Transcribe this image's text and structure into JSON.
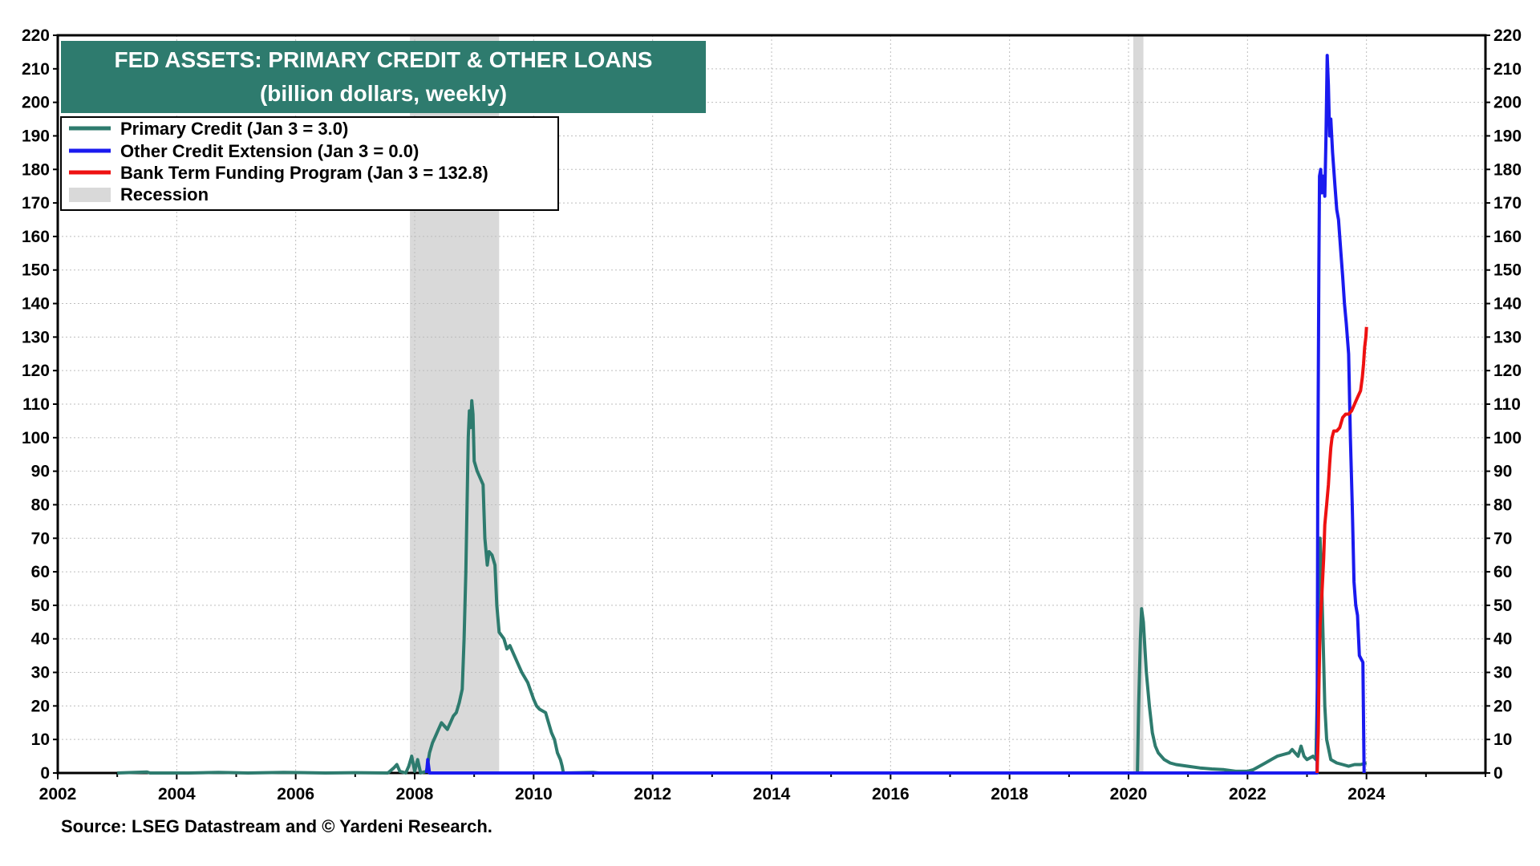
{
  "chart_data": {
    "type": "line",
    "title": "FED ASSETS: PRIMARY CREDIT & OTHER LOANS",
    "subtitle": "(billion dollars, weekly)",
    "source": "Source: LSEG Datastream and © Yardeni Research.",
    "xlim": [
      2002,
      2026
    ],
    "ylim": [
      0,
      220
    ],
    "x_ticks": [
      2002,
      2004,
      2006,
      2008,
      2010,
      2012,
      2014,
      2016,
      2018,
      2020,
      2022,
      2024
    ],
    "y_ticks": [
      0,
      10,
      20,
      30,
      40,
      50,
      60,
      70,
      80,
      90,
      100,
      110,
      120,
      130,
      140,
      150,
      160,
      170,
      180,
      190,
      200,
      210,
      220
    ],
    "grid": true,
    "legend_position": "top-left",
    "recessions": [
      {
        "start": 2007.92,
        "end": 2009.42
      },
      {
        "start": 2020.08,
        "end": 2020.25
      }
    ],
    "legend": {
      "primary": "Primary Credit (Jan 3 = 3.0)",
      "other": "Other Credit Extension (Jan 3 = 0.0)",
      "btfp": "Bank Term Funding Program (Jan 3 = 132.8)",
      "recession": "Recession"
    },
    "series": [
      {
        "key": "primary",
        "name": "Primary Credit (Jan 3 = 3.0)",
        "color": "#2e7b6e",
        "points": [
          [
            2003.0,
            0
          ],
          [
            2003.5,
            0.3
          ],
          [
            2003.55,
            0
          ],
          [
            2004.2,
            0
          ],
          [
            2004.7,
            0.2
          ],
          [
            2005.2,
            0
          ],
          [
            2005.8,
            0.2
          ],
          [
            2006.5,
            0
          ],
          [
            2007.0,
            0.1
          ],
          [
            2007.55,
            0
          ],
          [
            2007.65,
            1.5
          ],
          [
            2007.7,
            2.5
          ],
          [
            2007.75,
            0.5
          ],
          [
            2007.85,
            0
          ],
          [
            2007.9,
            2.0
          ],
          [
            2007.95,
            5.0
          ],
          [
            2008.0,
            0.5
          ],
          [
            2008.05,
            4.0
          ],
          [
            2008.1,
            0
          ],
          [
            2008.2,
            0.5
          ],
          [
            2008.25,
            6.0
          ],
          [
            2008.3,
            9.0
          ],
          [
            2008.35,
            11.0
          ],
          [
            2008.4,
            13.0
          ],
          [
            2008.45,
            15.0
          ],
          [
            2008.5,
            14.0
          ],
          [
            2008.55,
            13.0
          ],
          [
            2008.6,
            15.0
          ],
          [
            2008.65,
            17.0
          ],
          [
            2008.7,
            18.0
          ],
          [
            2008.75,
            21.0
          ],
          [
            2008.8,
            25.0
          ],
          [
            2008.83,
            40.0
          ],
          [
            2008.86,
            60.0
          ],
          [
            2008.88,
            80.0
          ],
          [
            2008.9,
            100.0
          ],
          [
            2008.92,
            108.0
          ],
          [
            2008.94,
            103.0
          ],
          [
            2008.96,
            111.0
          ],
          [
            2008.98,
            107.0
          ],
          [
            2009.0,
            93.0
          ],
          [
            2009.05,
            90.0
          ],
          [
            2009.1,
            88.0
          ],
          [
            2009.15,
            86.0
          ],
          [
            2009.18,
            70.0
          ],
          [
            2009.2,
            66.0
          ],
          [
            2009.22,
            62.0
          ],
          [
            2009.25,
            66.0
          ],
          [
            2009.3,
            65.0
          ],
          [
            2009.35,
            62.0
          ],
          [
            2009.38,
            50.0
          ],
          [
            2009.42,
            42.0
          ],
          [
            2009.5,
            40.0
          ],
          [
            2009.55,
            37.0
          ],
          [
            2009.6,
            38.0
          ],
          [
            2009.7,
            34.0
          ],
          [
            2009.75,
            32.0
          ],
          [
            2009.8,
            30.0
          ],
          [
            2009.9,
            27.0
          ],
          [
            2010.0,
            22.0
          ],
          [
            2010.05,
            20.0
          ],
          [
            2010.1,
            19.0
          ],
          [
            2010.2,
            18.0
          ],
          [
            2010.25,
            15.0
          ],
          [
            2010.3,
            12.0
          ],
          [
            2010.35,
            10.0
          ],
          [
            2010.4,
            6.0
          ],
          [
            2010.45,
            4.0
          ],
          [
            2010.48,
            2.0
          ],
          [
            2010.5,
            0
          ],
          [
            2011.0,
            0.2
          ],
          [
            2011.1,
            0
          ],
          [
            2012.0,
            0
          ],
          [
            2019.9,
            0
          ],
          [
            2020.15,
            0
          ],
          [
            2020.17,
            20.0
          ],
          [
            2020.2,
            40.0
          ],
          [
            2020.22,
            49.0
          ],
          [
            2020.25,
            45.0
          ],
          [
            2020.3,
            30.0
          ],
          [
            2020.35,
            20.0
          ],
          [
            2020.4,
            12.0
          ],
          [
            2020.45,
            8.0
          ],
          [
            2020.5,
            6.0
          ],
          [
            2020.6,
            4.0
          ],
          [
            2020.7,
            3.0
          ],
          [
            2020.8,
            2.5
          ],
          [
            2021.0,
            2.0
          ],
          [
            2021.2,
            1.5
          ],
          [
            2021.4,
            1.2
          ],
          [
            2021.6,
            1.0
          ],
          [
            2021.8,
            0.5
          ],
          [
            2022.0,
            0.5
          ],
          [
            2022.1,
            1.0
          ],
          [
            2022.2,
            2.0
          ],
          [
            2022.3,
            3.0
          ],
          [
            2022.4,
            4.0
          ],
          [
            2022.5,
            5.0
          ],
          [
            2022.6,
            5.5
          ],
          [
            2022.7,
            6.0
          ],
          [
            2022.75,
            7.0
          ],
          [
            2022.8,
            6.0
          ],
          [
            2022.85,
            5.0
          ],
          [
            2022.9,
            8.0
          ],
          [
            2022.95,
            5.0
          ],
          [
            2023.0,
            4.0
          ],
          [
            2023.1,
            5.0
          ],
          [
            2023.15,
            4.0
          ],
          [
            2023.18,
            30.0
          ],
          [
            2023.2,
            60.0
          ],
          [
            2023.22,
            70.0
          ],
          [
            2023.25,
            55.0
          ],
          [
            2023.3,
            20.0
          ],
          [
            2023.33,
            10.0
          ],
          [
            2023.4,
            4.0
          ],
          [
            2023.5,
            3.0
          ],
          [
            2023.6,
            2.5
          ],
          [
            2023.7,
            2.0
          ],
          [
            2023.8,
            2.5
          ],
          [
            2023.9,
            2.5
          ],
          [
            2024.0,
            3.0
          ]
        ]
      },
      {
        "key": "other",
        "name": "Other Credit Extension (Jan 3 = 0.0)",
        "color": "#1a1aef",
        "points": [
          [
            2008.2,
            0
          ],
          [
            2008.22,
            4.0
          ],
          [
            2008.25,
            0
          ],
          [
            2023.17,
            0
          ],
          [
            2023.18,
            85.0
          ],
          [
            2023.2,
            150.0
          ],
          [
            2023.21,
            178.0
          ],
          [
            2023.23,
            180.0
          ],
          [
            2023.25,
            173.0
          ],
          [
            2023.27,
            178.0
          ],
          [
            2023.3,
            172.0
          ],
          [
            2023.32,
            190.0
          ],
          [
            2023.34,
            214.0
          ],
          [
            2023.36,
            205.0
          ],
          [
            2023.38,
            190.0
          ],
          [
            2023.4,
            195.0
          ],
          [
            2023.43,
            185.0
          ],
          [
            2023.47,
            175.0
          ],
          [
            2023.5,
            168.0
          ],
          [
            2023.53,
            165.0
          ],
          [
            2023.57,
            155.0
          ],
          [
            2023.6,
            148.0
          ],
          [
            2023.63,
            140.0
          ],
          [
            2023.66,
            134.0
          ],
          [
            2023.7,
            125.0
          ],
          [
            2023.73,
            100.0
          ],
          [
            2023.76,
            80.0
          ],
          [
            2023.79,
            57.0
          ],
          [
            2023.82,
            50.0
          ],
          [
            2023.85,
            47.0
          ],
          [
            2023.88,
            35.0
          ],
          [
            2023.91,
            34.0
          ],
          [
            2023.94,
            33.0
          ],
          [
            2023.96,
            0
          ]
        ]
      },
      {
        "key": "btfp",
        "name": "Bank Term Funding Program (Jan 3 = 132.8)",
        "color": "#ee1111",
        "points": [
          [
            2023.17,
            0
          ],
          [
            2023.19,
            12.0
          ],
          [
            2023.2,
            25.0
          ],
          [
            2023.22,
            44.0
          ],
          [
            2023.25,
            53.0
          ],
          [
            2023.28,
            64.0
          ],
          [
            2023.3,
            74.0
          ],
          [
            2023.33,
            80.0
          ],
          [
            2023.36,
            86.0
          ],
          [
            2023.38,
            92.0
          ],
          [
            2023.4,
            97.0
          ],
          [
            2023.42,
            100.0
          ],
          [
            2023.45,
            102.0
          ],
          [
            2023.5,
            102.0
          ],
          [
            2023.55,
            103.0
          ],
          [
            2023.6,
            106.0
          ],
          [
            2023.65,
            107.0
          ],
          [
            2023.7,
            107.0
          ],
          [
            2023.75,
            108.0
          ],
          [
            2023.8,
            110.0
          ],
          [
            2023.85,
            112.0
          ],
          [
            2023.9,
            114.0
          ],
          [
            2023.93,
            118.0
          ],
          [
            2023.95,
            122.0
          ],
          [
            2023.97,
            127.0
          ],
          [
            2023.99,
            130.0
          ],
          [
            2024.0,
            133.0
          ]
        ]
      }
    ]
  }
}
